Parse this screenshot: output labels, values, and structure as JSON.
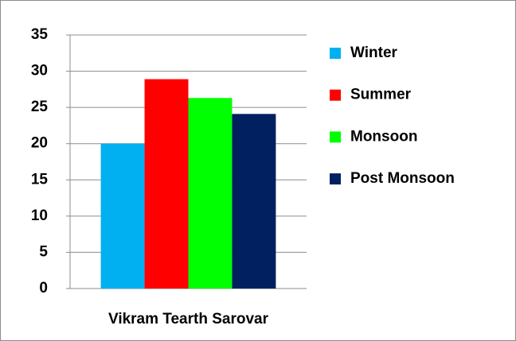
{
  "chart_data": {
    "type": "bar",
    "categories": [
      "Vikram Tearth Sarovar"
    ],
    "series": [
      {
        "name": "Winter",
        "color": "#00b0f0",
        "values": [
          20
        ]
      },
      {
        "name": "Summer",
        "color": "#ff0000",
        "values": [
          28.9
        ]
      },
      {
        "name": "Monsoon",
        "color": "#00ff00",
        "values": [
          26.3
        ]
      },
      {
        "name": "Post Monsoon",
        "color": "#002060",
        "values": [
          24.1
        ]
      }
    ],
    "ylim": [
      0,
      35
    ],
    "yticks": [
      0,
      5,
      10,
      15,
      20,
      25,
      30,
      35
    ],
    "grid": true,
    "legend": "right"
  }
}
